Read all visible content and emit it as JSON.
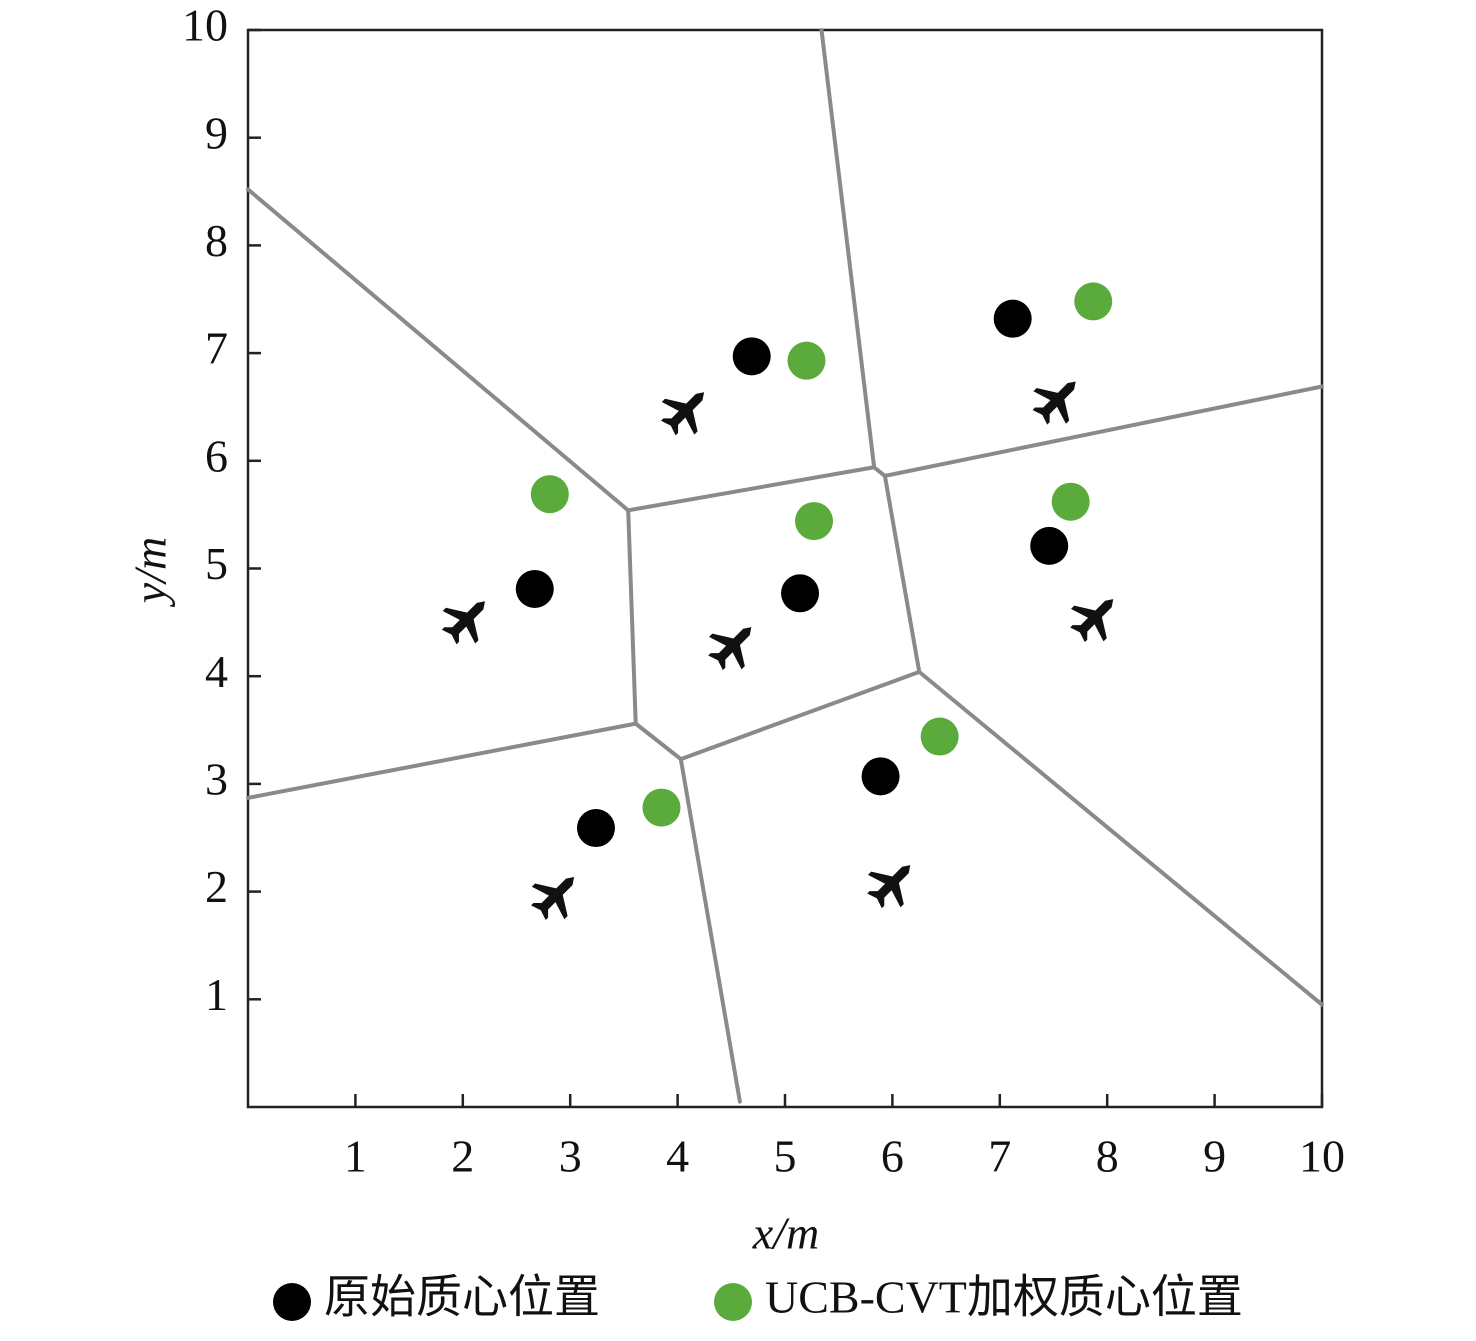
{
  "chart_data": {
    "type": "scatter",
    "x_label": "x/m",
    "y_label": "y/m",
    "xlim": [
      0,
      10
    ],
    "ylim": [
      0,
      10
    ],
    "xticks": [
      1,
      2,
      3,
      4,
      5,
      6,
      7,
      8,
      9,
      10
    ],
    "yticks": [
      1,
      2,
      3,
      4,
      5,
      6,
      7,
      8,
      9,
      10
    ],
    "series": [
      {
        "name": "原始质心位置",
        "color": "#000000",
        "x": [
          4.69,
          7.12,
          2.67,
          5.14,
          7.46,
          3.24,
          5.89
        ],
        "values": [
          6.97,
          7.32,
          4.81,
          4.77,
          5.21,
          2.59,
          3.07
        ]
      },
      {
        "name": "UCB-CVT加权质心位置",
        "color": "#5aaa3c",
        "x": [
          5.2,
          7.87,
          2.81,
          5.27,
          7.66,
          6.44,
          3.85
        ],
        "values": [
          6.93,
          7.48,
          5.69,
          5.44,
          5.62,
          3.44,
          2.78
        ]
      }
    ],
    "agents": {
      "x": [
        4.08,
        7.54,
        2.04,
        4.52,
        7.89,
        2.87,
        6.0
      ],
      "y": [
        6.47,
        6.57,
        4.53,
        4.29,
        4.55,
        1.97,
        2.08
      ]
    },
    "edges": [
      [
        [
          0,
          8.52
        ],
        [
          3.54,
          5.54
        ]
      ],
      [
        [
          3.54,
          5.54
        ],
        [
          5.83,
          5.94
        ]
      ],
      [
        [
          5.34,
          10
        ],
        [
          5.83,
          5.94
        ]
      ],
      [
        [
          5.83,
          5.94
        ],
        [
          5.93,
          5.86
        ]
      ],
      [
        [
          5.93,
          5.86
        ],
        [
          10,
          6.69
        ]
      ],
      [
        [
          5.93,
          5.86
        ],
        [
          6.25,
          4.04
        ]
      ],
      [
        [
          3.54,
          5.54
        ],
        [
          3.61,
          3.56
        ]
      ],
      [
        [
          3.61,
          3.56
        ],
        [
          0,
          2.87
        ]
      ],
      [
        [
          3.61,
          3.56
        ],
        [
          4.03,
          3.23
        ]
      ],
      [
        [
          4.03,
          3.23
        ],
        [
          6.25,
          4.04
        ]
      ],
      [
        [
          4.03,
          3.23
        ],
        [
          4.58,
          0.05
        ]
      ],
      [
        [
          6.25,
          4.04
        ],
        [
          10,
          0.95
        ]
      ]
    ]
  }
}
